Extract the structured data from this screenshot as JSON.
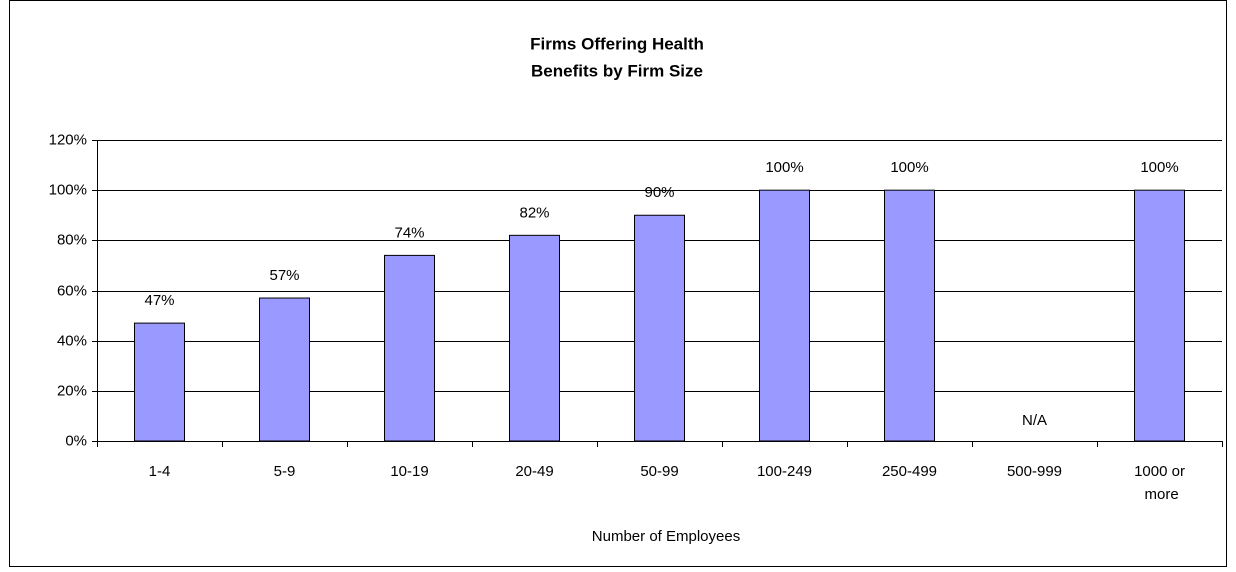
{
  "chart_data": {
    "type": "bar",
    "title": [
      "Firms Offering Health",
      "Benefits by Firm Size"
    ],
    "x_label": "Number of Employees",
    "categories": [
      "1-4",
      "5-9",
      "10-19",
      "20-49",
      "50-99",
      "100-249",
      "250-499",
      "500-999",
      "1000 or more"
    ],
    "values": [
      47,
      57,
      74,
      82,
      90,
      100,
      100,
      null,
      100
    ],
    "value_labels": [
      "47%",
      "57%",
      "74%",
      "82%",
      "90%",
      "100%",
      "100%",
      "N/A",
      "100%"
    ],
    "color": "#9999ff",
    "ylim": [
      0,
      120
    ],
    "yticks": [
      {
        "value": 0,
        "label": "0%"
      },
      {
        "value": 20,
        "label": "20%"
      },
      {
        "value": 40,
        "label": "40%"
      },
      {
        "value": 60,
        "label": "60%"
      },
      {
        "value": 80,
        "label": "80%"
      },
      {
        "value": 100,
        "label": "100%"
      },
      {
        "value": 120,
        "label": "120%"
      }
    ],
    "grid": true
  }
}
